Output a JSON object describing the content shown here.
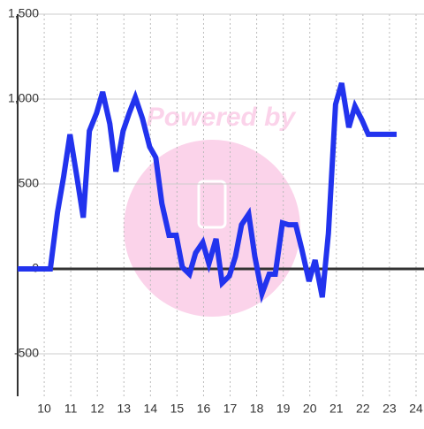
{
  "chart_data": {
    "type": "line",
    "watermark": "Powered by",
    "x": [
      9.0,
      10.23,
      10.5,
      10.73,
      10.97,
      11.23,
      11.47,
      11.7,
      11.97,
      12.2,
      12.47,
      12.7,
      12.97,
      13.2,
      13.43,
      13.7,
      13.97,
      14.2,
      14.43,
      14.7,
      14.97,
      15.2,
      15.47,
      15.7,
      15.97,
      16.2,
      16.47,
      16.7,
      16.97,
      17.2,
      17.43,
      17.7,
      17.93,
      18.2,
      18.47,
      18.7,
      18.97,
      19.2,
      19.47,
      19.7,
      19.97,
      20.2,
      20.47,
      20.7,
      20.97,
      21.2,
      21.47,
      21.7,
      21.97,
      22.2,
      22.47,
      23.27
    ],
    "series": [
      {
        "color": "#2233ee",
        "values": [
          0,
          0,
          333,
          542,
          792,
          542,
          302,
          812,
          917,
          1042,
          854,
          573,
          812,
          917,
          1010,
          885,
          719,
          656,
          385,
          198,
          198,
          10,
          -31,
          94,
          156,
          31,
          177,
          -83,
          -42,
          73,
          260,
          323,
          73,
          -146,
          -31,
          -31,
          271,
          260,
          260,
          115,
          -73,
          52,
          -167,
          208,
          969,
          1094,
          833,
          958,
          875,
          792,
          792,
          792
        ]
      }
    ],
    "xlim": [
      9,
      24.3
    ],
    "xticks": [
      10,
      11,
      12,
      13,
      14,
      15,
      16,
      17,
      18,
      19,
      20,
      21,
      22,
      23,
      24
    ],
    "ylim": [
      -750,
      1500
    ],
    "yticks": [
      {
        "value": 1500,
        "label": "1,500"
      },
      {
        "value": 1000,
        "label": "1,000"
      },
      500,
      0,
      -500
    ],
    "grid": true
  }
}
